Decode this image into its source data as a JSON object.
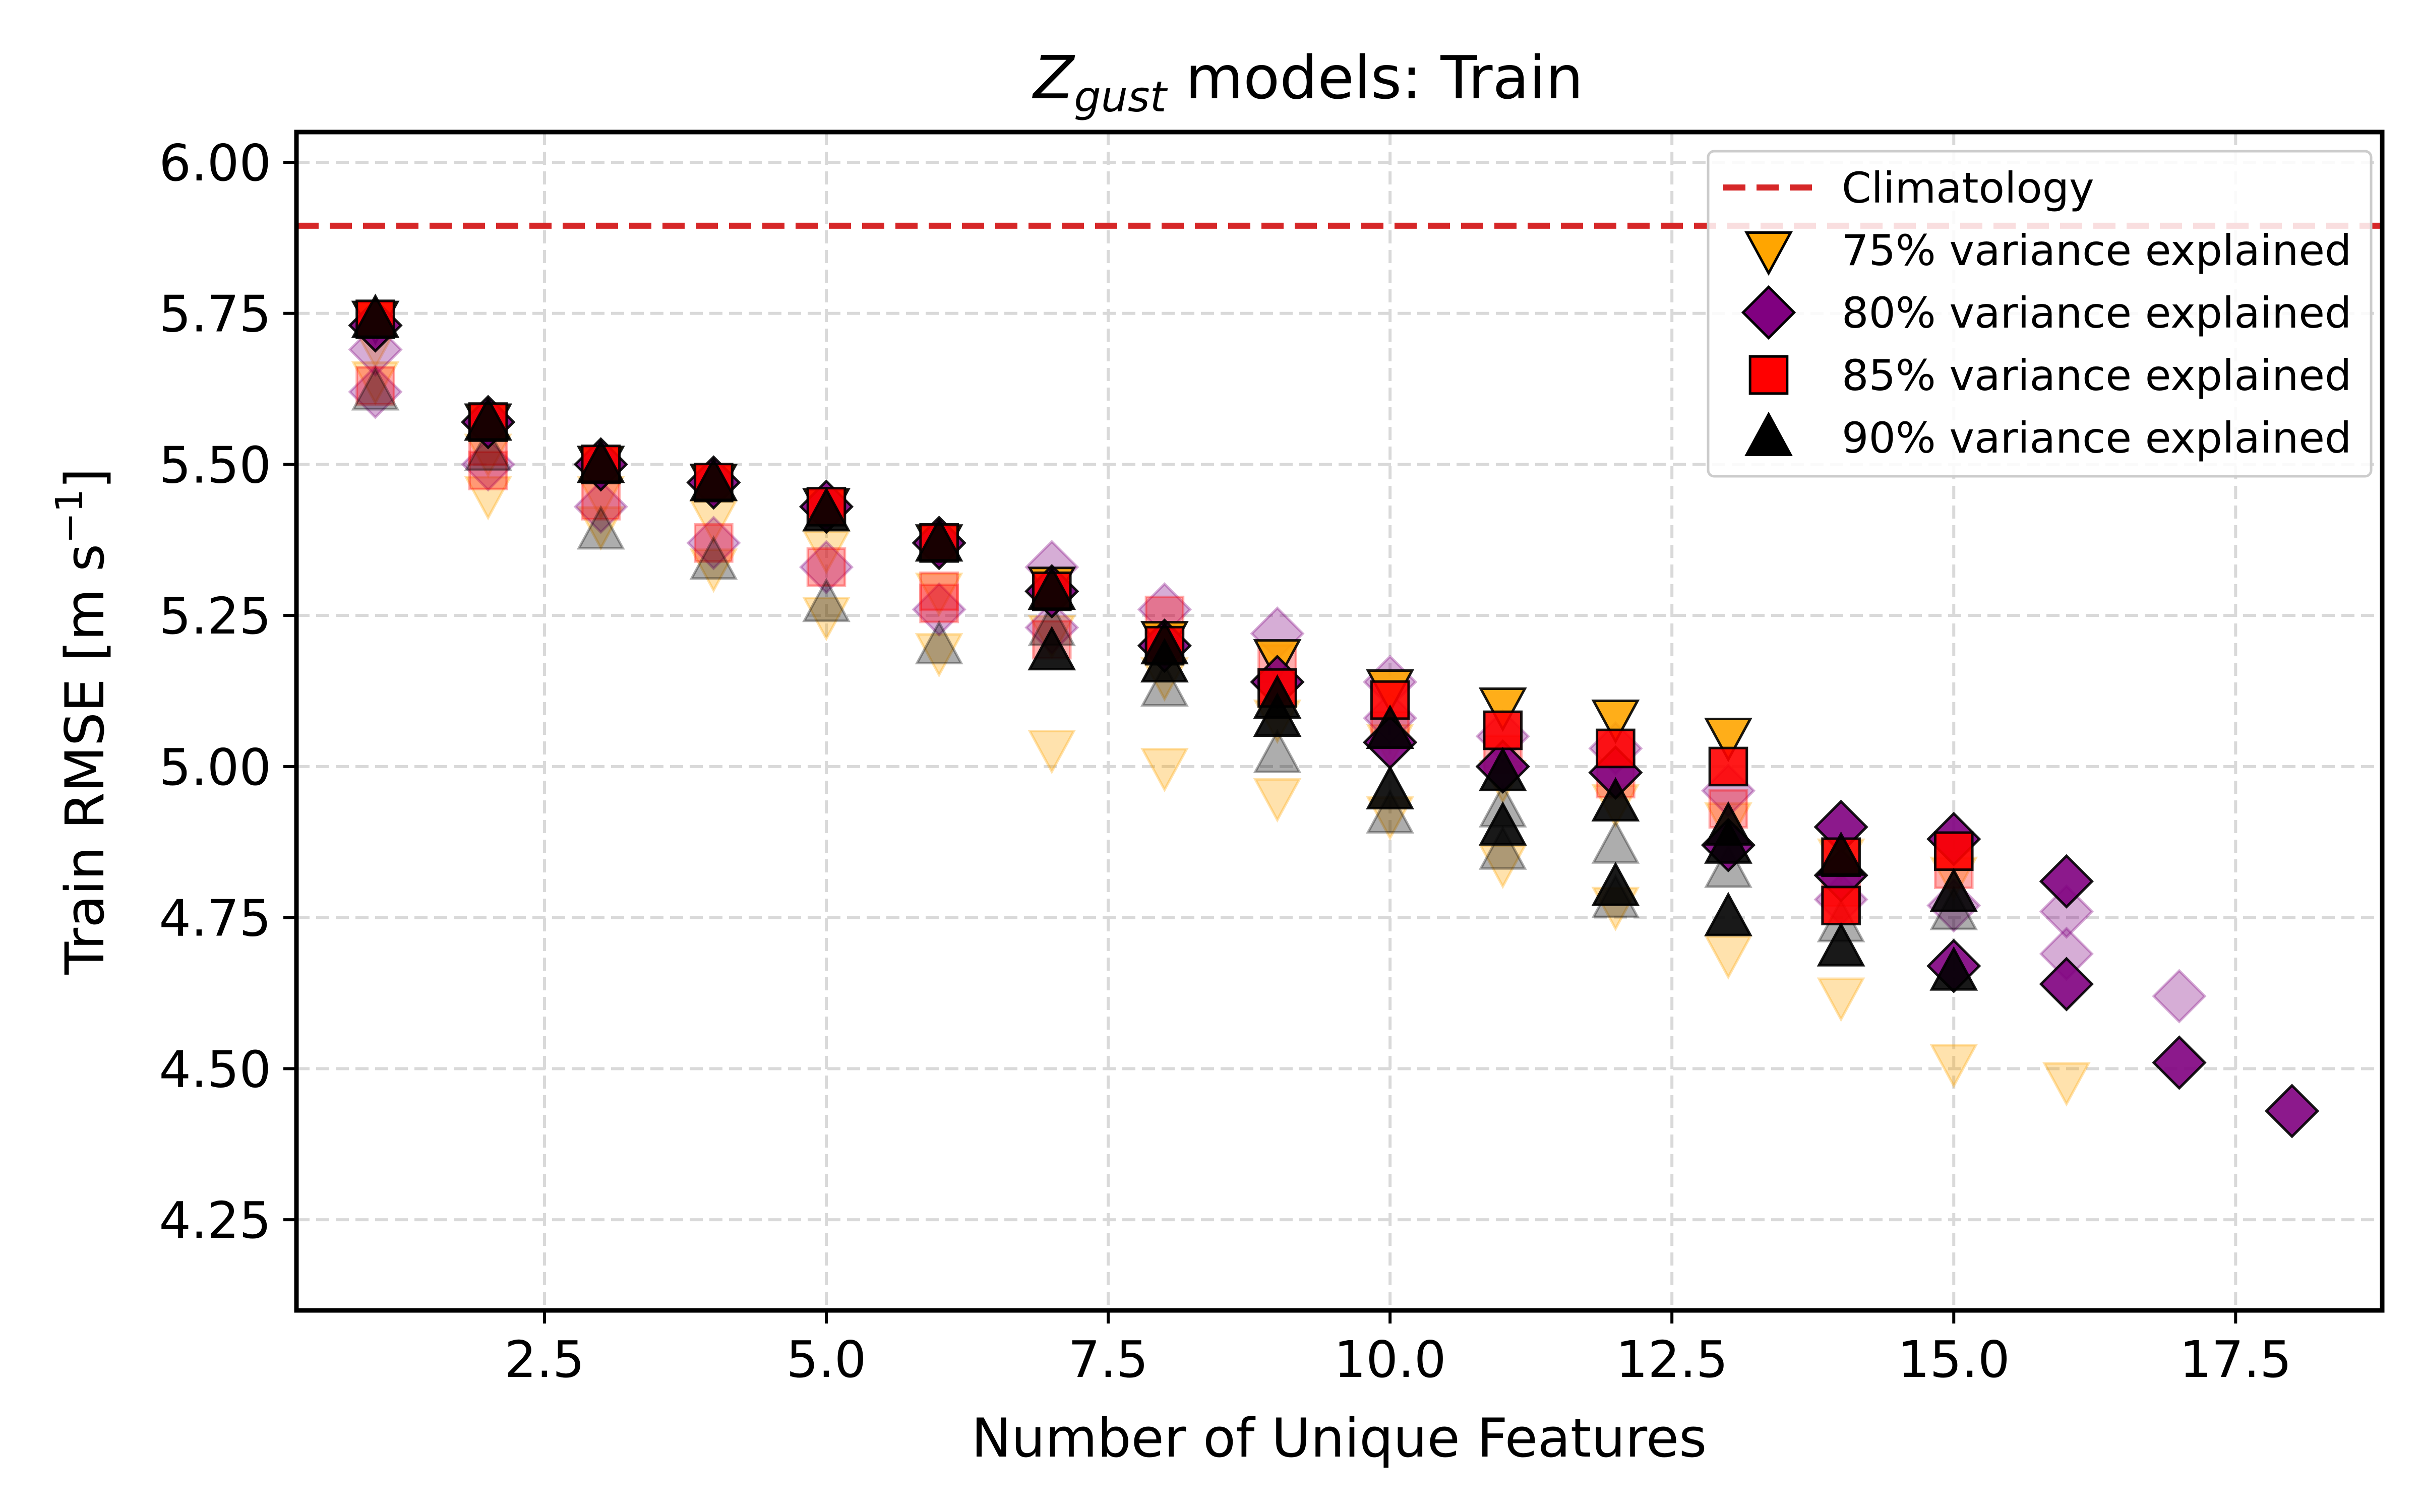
{
  "chart_data": {
    "type": "scatter",
    "title": {
      "prefix": "Z",
      "subscript": "gust",
      "suffix": " models: Train"
    },
    "xlabel": "Number of Unique Features",
    "ylabel": "Train RMSE [m s",
    "ylabel_sup": "−1",
    "ylabel_end": "]",
    "xlim": [
      0.3,
      18.8
    ],
    "ylim": [
      4.1,
      6.05
    ],
    "xticks": [
      "2.5",
      "5.0",
      "7.5",
      "10.0",
      "12.5",
      "15.0",
      "17.5"
    ],
    "yticks": [
      "4.25",
      "4.50",
      "4.75",
      "5.00",
      "5.25",
      "5.50",
      "5.75",
      "6.00"
    ],
    "grid": true,
    "legend_position": "top-right",
    "climatology": {
      "name": "Climatology",
      "value": 5.895,
      "color": "#d62728"
    },
    "series": [
      {
        "name": "75% variance explained",
        "marker": "triangle-down",
        "color": "#ffa500",
        "best": [
          [
            1,
            5.74
          ],
          [
            2,
            5.57
          ],
          [
            3,
            5.5
          ],
          [
            4,
            5.47
          ],
          [
            5,
            5.43
          ],
          [
            6,
            5.37
          ],
          [
            7,
            5.3
          ],
          [
            8,
            5.21
          ],
          [
            9,
            5.18
          ],
          [
            10,
            5.13
          ],
          [
            11,
            5.1
          ],
          [
            12,
            5.08
          ],
          [
            13,
            5.05
          ]
        ],
        "others": [
          [
            1,
            5.7
          ],
          [
            1,
            5.64
          ],
          [
            2,
            5.52
          ],
          [
            2,
            5.45
          ],
          [
            3,
            5.45
          ],
          [
            3,
            5.4
          ],
          [
            4,
            5.41
          ],
          [
            4,
            5.33
          ],
          [
            5,
            5.36
          ],
          [
            5,
            5.25
          ],
          [
            6,
            5.29
          ],
          [
            6,
            5.19
          ],
          [
            7,
            5.22
          ],
          [
            7,
            5.03
          ],
          [
            8,
            5.15
          ],
          [
            8,
            5.0
          ],
          [
            9,
            5.08
          ],
          [
            9,
            4.95
          ],
          [
            10,
            5.04
          ],
          [
            10,
            4.92
          ],
          [
            11,
            4.98
          ],
          [
            11,
            4.84
          ],
          [
            12,
            4.94
          ],
          [
            12,
            4.77
          ],
          [
            13,
            4.91
          ],
          [
            13,
            4.69
          ],
          [
            14,
            4.85
          ],
          [
            14,
            4.62
          ],
          [
            15,
            4.82
          ],
          [
            15,
            4.51
          ],
          [
            16,
            4.48
          ]
        ]
      },
      {
        "name": "80% variance explained",
        "marker": "diamond",
        "color": "#800080",
        "best": [
          [
            1,
            5.73
          ],
          [
            2,
            5.57
          ],
          [
            3,
            5.5
          ],
          [
            4,
            5.47
          ],
          [
            5,
            5.43
          ],
          [
            6,
            5.37
          ],
          [
            7,
            5.29
          ],
          [
            8,
            5.2
          ],
          [
            9,
            5.14
          ],
          [
            10,
            5.04
          ],
          [
            11,
            5.0
          ],
          [
            12,
            4.99
          ],
          [
            13,
            4.87
          ],
          [
            14,
            4.9
          ],
          [
            14,
            4.82
          ],
          [
            15,
            4.88
          ],
          [
            15,
            4.67
          ],
          [
            16,
            4.81
          ],
          [
            16,
            4.64
          ],
          [
            17,
            4.51
          ],
          [
            18,
            4.43
          ]
        ],
        "others": [
          [
            1,
            5.69
          ],
          [
            1,
            5.62
          ],
          [
            2,
            5.5
          ],
          [
            3,
            5.43
          ],
          [
            4,
            5.37
          ],
          [
            5,
            5.33
          ],
          [
            6,
            5.26
          ],
          [
            7,
            5.33
          ],
          [
            7,
            5.23
          ],
          [
            8,
            5.26
          ],
          [
            9,
            5.22
          ],
          [
            10,
            5.14
          ],
          [
            10,
            5.08
          ],
          [
            11,
            5.05
          ],
          [
            12,
            5.03
          ],
          [
            13,
            4.96
          ],
          [
            14,
            4.78
          ],
          [
            15,
            4.77
          ],
          [
            16,
            4.76
          ],
          [
            16,
            4.69
          ],
          [
            17,
            4.62
          ]
        ]
      },
      {
        "name": "85% variance explained",
        "marker": "square",
        "color": "#ff0000",
        "best": [
          [
            1,
            5.74
          ],
          [
            2,
            5.57
          ],
          [
            3,
            5.5
          ],
          [
            4,
            5.47
          ],
          [
            5,
            5.43
          ],
          [
            6,
            5.37
          ],
          [
            7,
            5.29
          ],
          [
            8,
            5.2
          ],
          [
            9,
            5.13
          ],
          [
            10,
            5.11
          ],
          [
            11,
            5.06
          ],
          [
            12,
            5.03
          ],
          [
            13,
            5.0
          ],
          [
            14,
            4.85
          ],
          [
            14,
            4.77
          ],
          [
            15,
            4.86
          ]
        ],
        "others": [
          [
            1,
            5.63
          ],
          [
            2,
            5.53
          ],
          [
            2,
            5.49
          ],
          [
            3,
            5.44
          ],
          [
            4,
            5.37
          ],
          [
            5,
            5.33
          ],
          [
            6,
            5.29
          ],
          [
            6,
            5.27
          ],
          [
            7,
            5.21
          ],
          [
            8,
            5.25
          ],
          [
            9,
            5.17
          ],
          [
            10,
            5.06
          ],
          [
            11,
            5.02
          ],
          [
            12,
            4.98
          ],
          [
            13,
            4.93
          ],
          [
            14,
            4.8
          ],
          [
            15,
            4.83
          ]
        ]
      },
      {
        "name": "90% variance explained",
        "marker": "triangle-up",
        "color": "#000000",
        "best": [
          [
            1,
            5.74
          ],
          [
            2,
            5.57
          ],
          [
            3,
            5.5
          ],
          [
            4,
            5.47
          ],
          [
            5,
            5.42
          ],
          [
            6,
            5.37
          ],
          [
            7,
            5.29
          ],
          [
            7,
            5.19
          ],
          [
            8,
            5.2
          ],
          [
            8,
            5.17
          ],
          [
            9,
            5.11
          ],
          [
            9,
            5.08
          ],
          [
            10,
            5.06
          ],
          [
            10,
            4.96
          ],
          [
            11,
            4.99
          ],
          [
            11,
            4.9
          ],
          [
            12,
            4.94
          ],
          [
            12,
            4.8
          ],
          [
            13,
            4.9
          ],
          [
            13,
            4.87
          ],
          [
            13,
            4.75
          ],
          [
            14,
            4.85
          ],
          [
            14,
            4.7
          ],
          [
            15,
            4.79
          ],
          [
            15,
            4.66
          ]
        ],
        "others": [
          [
            1,
            5.62
          ],
          [
            2,
            5.52
          ],
          [
            3,
            5.39
          ],
          [
            4,
            5.34
          ],
          [
            5,
            5.27
          ],
          [
            6,
            5.2
          ],
          [
            7,
            5.23
          ],
          [
            8,
            5.13
          ],
          [
            9,
            5.02
          ],
          [
            10,
            4.92
          ],
          [
            11,
            4.93
          ],
          [
            11,
            4.86
          ],
          [
            12,
            4.87
          ],
          [
            12,
            4.78
          ],
          [
            13,
            4.83
          ],
          [
            14,
            4.74
          ],
          [
            15,
            4.76
          ]
        ]
      }
    ]
  }
}
